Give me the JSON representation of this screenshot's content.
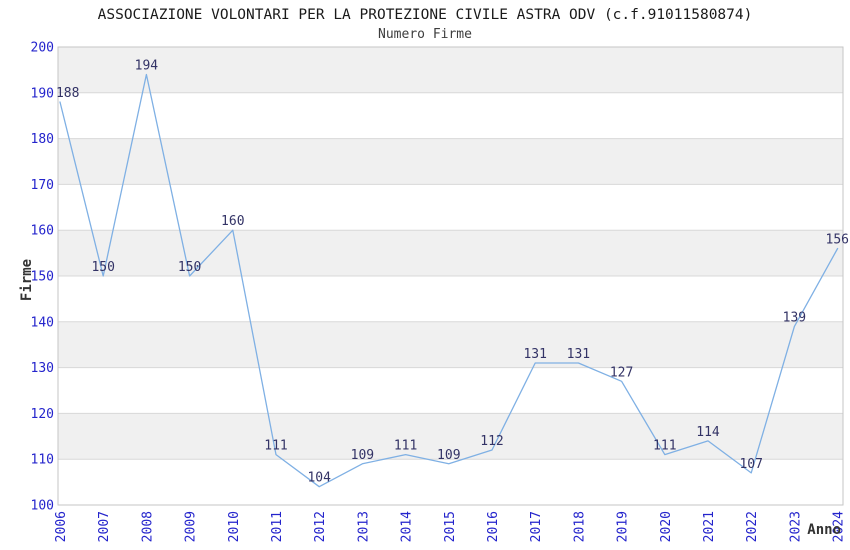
{
  "chart_data": {
    "type": "line",
    "title": "ASSOCIAZIONE VOLONTARI PER LA PROTEZIONE CIVILE ASTRA ODV (c.f.91011580874)",
    "subtitle": "Numero Firme",
    "xlabel": "Anno",
    "ylabel": "Firme",
    "categories": [
      "2006",
      "2007",
      "2008",
      "2009",
      "2010",
      "2011",
      "2012",
      "2013",
      "2014",
      "2015",
      "2016",
      "2017",
      "2018",
      "2019",
      "2020",
      "2021",
      "2022",
      "2023",
      "2024"
    ],
    "values": [
      188,
      150,
      194,
      150,
      160,
      111,
      104,
      109,
      111,
      109,
      112,
      131,
      131,
      127,
      111,
      114,
      107,
      139,
      156
    ],
    "ylim": [
      100,
      200
    ],
    "ytick_step": 10,
    "yticks": [
      100,
      110,
      120,
      130,
      140,
      150,
      160,
      170,
      180,
      190,
      200
    ],
    "grid": "horizontal-bands",
    "legend_position": "none",
    "data_labels_visible": true,
    "colors": {
      "line": "#7fb0e4",
      "tick_label": "#2424cc",
      "data_label": "#333366",
      "band": "#f0f0f0",
      "gridline": "#d8d8d8",
      "border": "#c6c6c6",
      "title": "#1a1a1a",
      "subtitle": "#3d3d3d",
      "axis_title": "#333333",
      "background": "#ffffff"
    }
  }
}
